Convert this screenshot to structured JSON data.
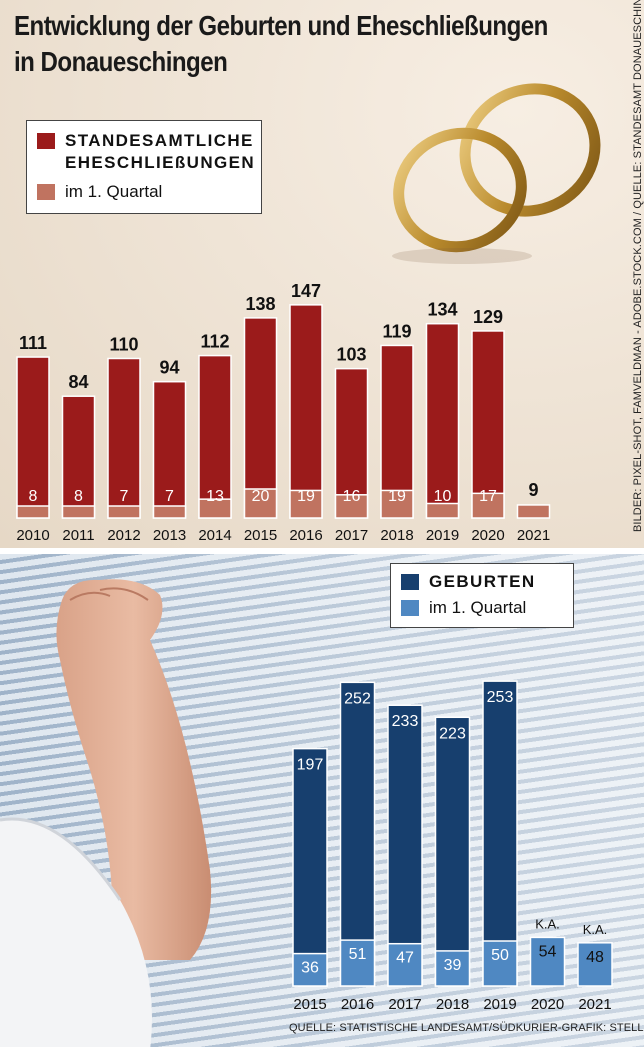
{
  "title": {
    "line1": "Entwicklung der Geburten und Eheschließungen",
    "line2": "in Donaueschingen"
  },
  "side_credit": "BILDER: PIXEL-SHOT, FAMVELDMAN - ADOBE.STOCK.COM / QUELLE: STANDESAMT DONAUESCHINGEN",
  "bottom_credit": "QUELLE: STATISTISCHE LANDESAMT/SÜDKURIER-GRAFIK: STELLER",
  "colors": {
    "marriage_total": "#9b1b1b",
    "marriage_q1": "#c07360",
    "birth_total": "#173f6e",
    "birth_q1": "#4f88c2"
  },
  "legend_marriage": {
    "total_label": "STANDESAMTLICHE\nEHESCHLIEßUNGEN",
    "q1_label": "im 1. Quartal"
  },
  "legend_birth": {
    "total_label": "GEBURTEN",
    "q1_label": "im 1. Quartal"
  },
  "images": [
    "wedding-rings",
    "baby-arm"
  ],
  "chart_data": [
    {
      "type": "bar",
      "categories": [
        "2010",
        "2011",
        "2012",
        "2013",
        "2014",
        "2015",
        "2016",
        "2017",
        "2018",
        "2019",
        "2020",
        "2021"
      ],
      "series": [
        {
          "name": "STANDESAMTLICHE EHESCHLIEßUNGEN",
          "values": [
            111,
            84,
            110,
            94,
            112,
            138,
            147,
            103,
            119,
            134,
            129,
            null
          ]
        },
        {
          "name": "im 1. Quartal",
          "values": [
            8,
            8,
            7,
            7,
            13,
            20,
            19,
            16,
            19,
            10,
            17,
            9
          ]
        }
      ],
      "ylim": [
        0,
        160
      ]
    },
    {
      "type": "bar",
      "categories": [
        "2015",
        "2016",
        "2017",
        "2018",
        "2019",
        "2020",
        "2021"
      ],
      "series": [
        {
          "name": "GEBURTEN",
          "values": [
            197,
            252,
            233,
            223,
            253,
            null,
            null
          ],
          "missing_label": "K.A."
        },
        {
          "name": "im 1. Quartal",
          "values": [
            36,
            51,
            47,
            39,
            50,
            54,
            48
          ]
        }
      ],
      "ylim": [
        0,
        270
      ]
    }
  ]
}
